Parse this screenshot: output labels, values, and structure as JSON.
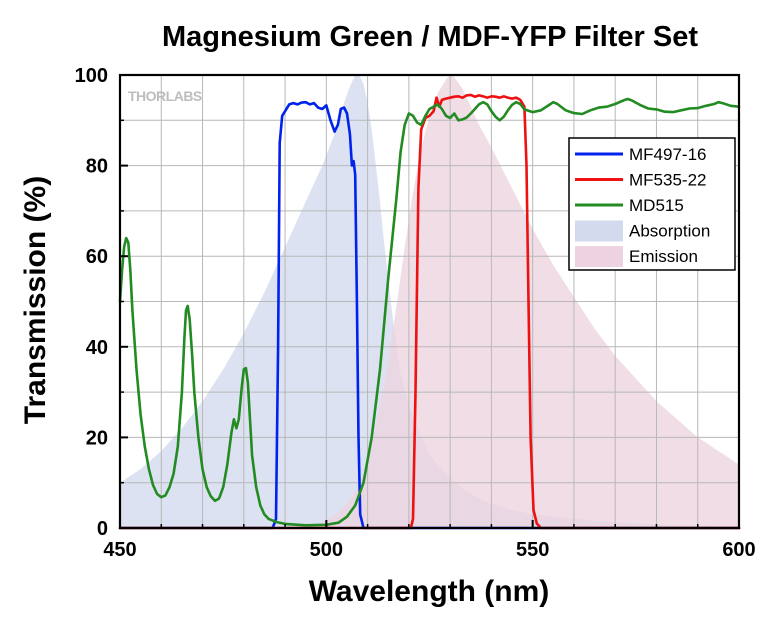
{
  "chart_data": {
    "type": "line",
    "title": "Magnesium Green / MDF-YFP Filter Set",
    "xlabel": "Wavelength (nm)",
    "ylabel": "Transmission (%)",
    "xlim": [
      450,
      600
    ],
    "ylim": [
      0,
      100
    ],
    "x_ticks": [
      450,
      500,
      550,
      600
    ],
    "y_ticks": [
      0,
      20,
      40,
      60,
      80,
      100
    ],
    "x_minor_step": 10,
    "y_minor_step": 10,
    "grid": true,
    "legend_position": "top-right",
    "watermark": "THORLABS",
    "series": [
      {
        "name": "MF497-16",
        "kind": "line",
        "color": "#0022ee",
        "points": [
          [
            450,
            0
          ],
          [
            487,
            0
          ],
          [
            487.8,
            2
          ],
          [
            488.3,
            40
          ],
          [
            488.7,
            85
          ],
          [
            489.3,
            91
          ],
          [
            490,
            92
          ],
          [
            491,
            93.5
          ],
          [
            492,
            93.8
          ],
          [
            493,
            93.5
          ],
          [
            494,
            93.9
          ],
          [
            495,
            94
          ],
          [
            496,
            93.5
          ],
          [
            497,
            93.8
          ],
          [
            498,
            92.8
          ],
          [
            499,
            92.5
          ],
          [
            500,
            93.3
          ],
          [
            501,
            90
          ],
          [
            502,
            87.5
          ],
          [
            502.8,
            89
          ],
          [
            503.5,
            92.5
          ],
          [
            504.3,
            92.8
          ],
          [
            505,
            91.5
          ],
          [
            505.7,
            87
          ],
          [
            506.2,
            80
          ],
          [
            506.6,
            81
          ],
          [
            507,
            78
          ],
          [
            507.4,
            50
          ],
          [
            507.8,
            20
          ],
          [
            508.2,
            3
          ],
          [
            509,
            0
          ],
          [
            600,
            0
          ]
        ]
      },
      {
        "name": "MF535-22",
        "kind": "line",
        "color": "#ee1111",
        "points": [
          [
            450,
            0
          ],
          [
            520.5,
            0
          ],
          [
            521,
            2
          ],
          [
            521.6,
            30
          ],
          [
            522.3,
            75
          ],
          [
            523,
            88
          ],
          [
            524,
            90.5
          ],
          [
            525,
            91
          ],
          [
            526,
            92
          ],
          [
            526.7,
            95
          ],
          [
            527.4,
            93
          ],
          [
            528,
            94.5
          ],
          [
            529,
            94.8
          ],
          [
            530,
            95
          ],
          [
            531,
            95.2
          ],
          [
            532,
            95.3
          ],
          [
            533,
            95
          ],
          [
            534,
            95.5
          ],
          [
            535,
            95.6
          ],
          [
            536,
            95.2
          ],
          [
            537,
            95.5
          ],
          [
            538,
            95.3
          ],
          [
            539,
            95
          ],
          [
            540,
            95.3
          ],
          [
            541,
            95.2
          ],
          [
            542,
            95
          ],
          [
            543,
            95.3
          ],
          [
            544,
            95
          ],
          [
            545,
            94.8
          ],
          [
            546,
            95
          ],
          [
            547,
            94.5
          ],
          [
            548,
            93
          ],
          [
            548.5,
            80
          ],
          [
            549,
            50
          ],
          [
            549.5,
            20
          ],
          [
            550.2,
            4
          ],
          [
            551,
            1
          ],
          [
            552,
            0
          ],
          [
            600,
            0
          ]
        ]
      },
      {
        "name": "MD515",
        "kind": "line",
        "color": "#228b22",
        "points": [
          [
            450,
            50
          ],
          [
            450.5,
            57
          ],
          [
            451,
            62
          ],
          [
            451.5,
            64
          ],
          [
            452,
            63
          ],
          [
            452.5,
            57
          ],
          [
            453,
            48
          ],
          [
            454,
            35
          ],
          [
            455,
            25
          ],
          [
            456,
            18
          ],
          [
            457,
            13
          ],
          [
            458,
            9.5
          ],
          [
            459,
            7.5
          ],
          [
            460,
            6.8
          ],
          [
            461,
            7.2
          ],
          [
            462,
            9
          ],
          [
            463,
            12
          ],
          [
            464,
            18
          ],
          [
            465,
            30
          ],
          [
            465.6,
            42
          ],
          [
            466,
            48
          ],
          [
            466.4,
            49
          ],
          [
            466.9,
            46
          ],
          [
            467.5,
            38
          ],
          [
            468,
            30
          ],
          [
            469,
            20
          ],
          [
            470,
            13
          ],
          [
            471,
            9
          ],
          [
            472,
            7
          ],
          [
            473,
            6
          ],
          [
            474,
            6.5
          ],
          [
            475,
            9
          ],
          [
            476,
            14
          ],
          [
            477,
            21
          ],
          [
            477.6,
            24
          ],
          [
            478.2,
            22
          ],
          [
            478.8,
            24
          ],
          [
            479.5,
            31
          ],
          [
            480,
            35
          ],
          [
            480.5,
            35.3
          ],
          [
            481,
            32
          ],
          [
            481.5,
            24
          ],
          [
            482,
            16
          ],
          [
            483,
            9
          ],
          [
            484,
            5
          ],
          [
            485,
            3
          ],
          [
            486,
            2
          ],
          [
            488,
            1.3
          ],
          [
            490,
            0.9
          ],
          [
            495,
            0.6
          ],
          [
            500,
            0.7
          ],
          [
            503,
            1.2
          ],
          [
            505,
            2.5
          ],
          [
            507,
            5
          ],
          [
            509,
            10
          ],
          [
            511,
            20
          ],
          [
            513,
            35
          ],
          [
            515,
            55
          ],
          [
            517,
            73
          ],
          [
            518,
            83
          ],
          [
            519,
            89
          ],
          [
            520,
            91.5
          ],
          [
            521,
            91
          ],
          [
            522,
            89.5
          ],
          [
            523,
            89
          ],
          [
            524,
            91
          ],
          [
            525,
            92.5
          ],
          [
            526,
            93
          ],
          [
            527,
            93.5
          ],
          [
            528,
            92.5
          ],
          [
            529,
            91
          ],
          [
            530,
            90.5
          ],
          [
            531,
            91.5
          ],
          [
            532,
            90
          ],
          [
            533,
            90.2
          ],
          [
            534,
            90.6
          ],
          [
            535,
            91.5
          ],
          [
            536,
            92.5
          ],
          [
            537,
            93.5
          ],
          [
            538,
            94
          ],
          [
            539,
            93.5
          ],
          [
            540,
            92
          ],
          [
            541,
            90.8
          ],
          [
            542,
            90
          ],
          [
            543,
            90.8
          ],
          [
            544,
            92.2
          ],
          [
            545,
            93.4
          ],
          [
            546,
            94
          ],
          [
            547,
            93.6
          ],
          [
            548,
            92.4
          ],
          [
            550,
            91.8
          ],
          [
            552,
            92.2
          ],
          [
            554,
            93.4
          ],
          [
            555,
            94
          ],
          [
            556,
            93.6
          ],
          [
            558,
            92.2
          ],
          [
            560,
            91.6
          ],
          [
            562,
            91.4
          ],
          [
            564,
            92.2
          ],
          [
            566,
            92.8
          ],
          [
            568,
            93
          ],
          [
            570,
            93.6
          ],
          [
            572,
            94.4
          ],
          [
            573,
            94.7
          ],
          [
            574,
            94.4
          ],
          [
            576,
            93.4
          ],
          [
            578,
            92.6
          ],
          [
            580,
            92.4
          ],
          [
            582,
            91.9
          ],
          [
            584,
            91.8
          ],
          [
            586,
            92.2
          ],
          [
            588,
            92.6
          ],
          [
            590,
            92.7
          ],
          [
            592,
            93.2
          ],
          [
            594,
            93.6
          ],
          [
            595,
            94
          ],
          [
            596,
            93.8
          ],
          [
            598,
            93.2
          ],
          [
            600,
            93
          ]
        ]
      },
      {
        "name": "Absorption",
        "kind": "area",
        "color": "#d4daee",
        "points": [
          [
            450,
            10
          ],
          [
            455,
            13
          ],
          [
            460,
            17
          ],
          [
            465,
            22
          ],
          [
            470,
            28
          ],
          [
            475,
            35
          ],
          [
            480,
            43
          ],
          [
            485,
            52
          ],
          [
            490,
            62
          ],
          [
            493,
            68
          ],
          [
            496,
            74
          ],
          [
            499,
            80
          ],
          [
            502,
            87
          ],
          [
            504,
            93
          ],
          [
            505.5,
            97
          ],
          [
            507,
            100
          ],
          [
            508,
            100
          ],
          [
            509,
            98
          ],
          [
            510,
            94
          ],
          [
            511,
            88
          ],
          [
            512,
            80
          ],
          [
            513,
            72
          ],
          [
            514,
            63
          ],
          [
            515,
            55
          ],
          [
            516,
            47
          ],
          [
            517,
            40
          ],
          [
            518,
            34
          ],
          [
            520,
            27
          ],
          [
            522,
            22
          ],
          [
            524,
            18
          ],
          [
            526,
            15
          ],
          [
            528,
            13
          ],
          [
            530,
            11
          ],
          [
            532,
            9.5
          ],
          [
            534,
            8
          ],
          [
            536,
            7
          ],
          [
            538,
            6
          ],
          [
            540,
            5.3
          ],
          [
            545,
            4
          ],
          [
            550,
            3
          ],
          [
            560,
            2
          ],
          [
            570,
            1.3
          ],
          [
            580,
            0.8
          ],
          [
            590,
            0.5
          ],
          [
            600,
            0.3
          ]
        ]
      },
      {
        "name": "Emission",
        "kind": "area",
        "color": "#ecd3df",
        "points": [
          [
            450,
            0
          ],
          [
            495,
            0
          ],
          [
            497,
            0.5
          ],
          [
            500,
            1.5
          ],
          [
            503,
            3.5
          ],
          [
            505,
            5.5
          ],
          [
            507,
            8
          ],
          [
            509,
            12
          ],
          [
            511,
            18
          ],
          [
            513,
            27
          ],
          [
            515,
            37
          ],
          [
            517,
            49
          ],
          [
            519,
            62
          ],
          [
            521,
            74
          ],
          [
            523,
            84
          ],
          [
            525,
            91
          ],
          [
            527,
            96
          ],
          [
            529,
            99
          ],
          [
            530,
            100
          ],
          [
            531,
            99.5
          ],
          [
            533,
            97
          ],
          [
            535,
            93
          ],
          [
            537,
            89
          ],
          [
            540,
            84
          ],
          [
            545,
            75
          ],
          [
            550,
            66
          ],
          [
            555,
            58
          ],
          [
            560,
            51
          ],
          [
            565,
            44
          ],
          [
            570,
            38
          ],
          [
            575,
            33
          ],
          [
            580,
            28
          ],
          [
            585,
            24
          ],
          [
            590,
            20
          ],
          [
            595,
            17
          ],
          [
            600,
            14
          ]
        ]
      }
    ]
  }
}
